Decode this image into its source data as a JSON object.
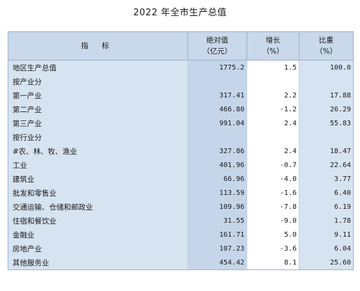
{
  "title": "2022 年全市生产总值",
  "headers": {
    "name": "指 标",
    "value_line1": "绝对值",
    "value_line2": "（亿元）",
    "growth_line1": "增长",
    "growth_line2": "（%）",
    "share_line1": "比重",
    "share_line2": "（%）"
  },
  "rows": [
    {
      "name": "地区生产总值",
      "value": "1775.2",
      "growth": "1.5",
      "share": "100.0"
    },
    {
      "name": "按产业分",
      "value": "",
      "growth": "",
      "share": ""
    },
    {
      "name": "第一产业",
      "value": "317.41",
      "growth": "2.2",
      "share": "17.88"
    },
    {
      "name": "第二产业",
      "value": "466.80",
      "growth": "-1.2",
      "share": "26.29"
    },
    {
      "name": "第三产业",
      "value": "991.04",
      "growth": "2.4",
      "share": "55.83"
    },
    {
      "name": "按行业分",
      "value": "",
      "growth": "",
      "share": ""
    },
    {
      "name": "#农、林、牧、渔业",
      "value": "327.86",
      "growth": "2.4",
      "share": "18.47"
    },
    {
      "name": "工业",
      "value": "401.96",
      "growth": "-0.7",
      "share": "22.64"
    },
    {
      "name": "建筑业",
      "value": "66.96",
      "growth": "-4.0",
      "share": "3.77"
    },
    {
      "name": "批发和零售业",
      "value": "113.59",
      "growth": "-1.6",
      "share": "6.40"
    },
    {
      "name": "交通运输、仓储和邮政业",
      "value": "109.96",
      "growth": "-7.8",
      "share": "6.19"
    },
    {
      "name": "住宿和餐饮业",
      "value": "31.55",
      "growth": "-9.0",
      "share": "1.78"
    },
    {
      "name": "金融业",
      "value": "161.71",
      "growth": "5.0",
      "share": "9.11"
    },
    {
      "name": "房地产业",
      "value": "107.23",
      "growth": "-3.6",
      "share": "6.04"
    },
    {
      "name": "其他服务业",
      "value": "454.42",
      "growth": "8.1",
      "share": "25.60"
    }
  ]
}
